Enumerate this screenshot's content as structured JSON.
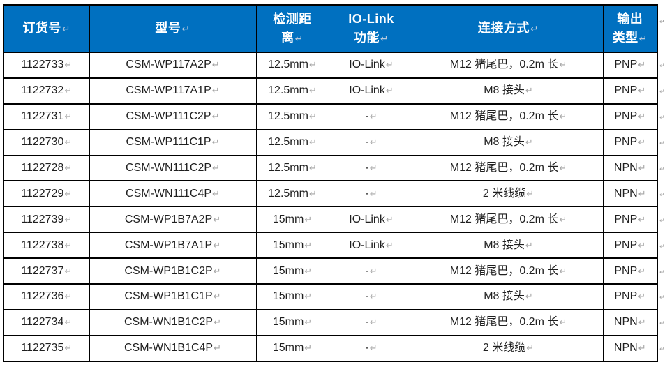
{
  "table": {
    "header": {
      "bg": "#0070C0",
      "text_color": "#ffffff",
      "columns": [
        {
          "id": "order_no",
          "label": "订货号"
        },
        {
          "id": "model",
          "label": "型号"
        },
        {
          "id": "detection_distance",
          "label": "检测距\n离"
        },
        {
          "id": "io_link",
          "label": "IO-Link\n功能"
        },
        {
          "id": "connection",
          "label": "连接方式"
        },
        {
          "id": "output_type",
          "label": "输出\n类型"
        }
      ]
    },
    "rows": [
      {
        "order_no": "1122733",
        "model": "CSM-WP117A2P",
        "detection_distance": "12.5mm",
        "io_link": "IO-Link",
        "connection": "M12 猪尾巴，0.2m 长",
        "output_type": "PNP"
      },
      {
        "order_no": "1122732",
        "model": "CSM-WP117A1P",
        "detection_distance": "12.5mm",
        "io_link": "IO-Link",
        "connection": "M8 接头",
        "output_type": "PNP"
      },
      {
        "order_no": "1122731",
        "model": "CSM-WP111C2P",
        "detection_distance": "12.5mm",
        "io_link": "-",
        "connection": "M12 猪尾巴，0.2m 长",
        "output_type": "PNP"
      },
      {
        "order_no": "1122730",
        "model": "CSM-WP111C1P",
        "detection_distance": "12.5mm",
        "io_link": "-",
        "connection": "M8 接头",
        "output_type": "PNP"
      },
      {
        "order_no": "1122728",
        "model": "CSM-WN111C2P",
        "detection_distance": "12.5mm",
        "io_link": "-",
        "connection": "M12 猪尾巴，0.2m 长",
        "output_type": "NPN"
      },
      {
        "order_no": "1122729",
        "model": "CSM-WN111C4P",
        "detection_distance": "12.5mm",
        "io_link": "-",
        "connection": "2 米线缆",
        "output_type": "NPN"
      },
      {
        "order_no": "1122739",
        "model": "CSM-WP1B7A2P",
        "detection_distance": "15mm",
        "io_link": "IO-Link",
        "connection": "M12 猪尾巴，0.2m 长",
        "output_type": "PNP"
      },
      {
        "order_no": "1122738",
        "model": "CSM-WP1B7A1P",
        "detection_distance": "15mm",
        "io_link": "IO-Link",
        "connection": "M8 接头",
        "output_type": "PNP"
      },
      {
        "order_no": "1122737",
        "model": "CSM-WP1B1C2P",
        "detection_distance": "15mm",
        "io_link": "-",
        "connection": "M12 猪尾巴，0.2m 长",
        "output_type": "PNP"
      },
      {
        "order_no": "1122736",
        "model": "CSM-WP1B1C1P",
        "detection_distance": "15mm",
        "io_link": "-",
        "connection": "M8 接头",
        "output_type": "PNP"
      },
      {
        "order_no": "1122734",
        "model": "CSM-WN1B1C2P",
        "detection_distance": "15mm",
        "io_link": "-",
        "connection": "M12 猪尾巴，0.2m 长",
        "output_type": "NPN"
      },
      {
        "order_no": "1122735",
        "model": "CSM-WN1B1C4P",
        "detection_distance": "15mm",
        "io_link": "-",
        "connection": "2 米线缆",
        "output_type": "NPN"
      }
    ],
    "marks": {
      "paragraph_mark": "↵",
      "row_end_mark": "↵"
    },
    "colors": {
      "border": "#000000",
      "body_text": "#1f1f1f",
      "mark_gray": "#a6a6a6"
    }
  }
}
